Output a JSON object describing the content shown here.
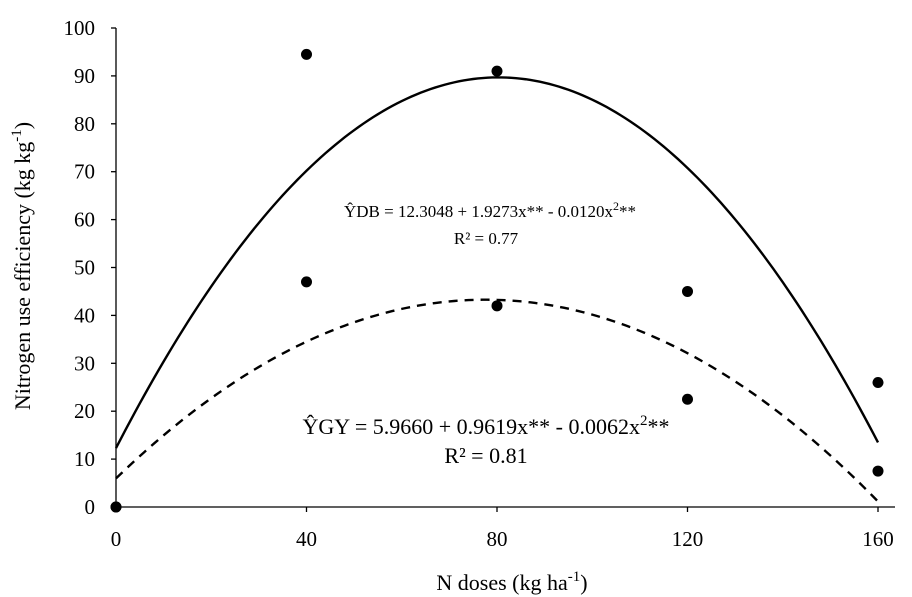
{
  "chart_data": {
    "type": "scatter",
    "xlabel": "N doses (kg ha",
    "xlabel_sup": "-1",
    "xlabel_end": ")",
    "ylabel": "Nitrogen  use  efficiency  (kg kg",
    "ylabel_sup": "-1",
    "ylabel_end": ")",
    "xlim": [
      0,
      160
    ],
    "ylim": [
      0,
      100
    ],
    "x_ticks": [
      "0",
      "40",
      "80",
      "120",
      "160"
    ],
    "y_ticks": [
      "0",
      "10",
      "20",
      "30",
      "40",
      "50",
      "60",
      "70",
      "80",
      "90",
      "100"
    ],
    "grid": false,
    "series": [
      {
        "marker": "circle",
        "x": [
          0,
          40,
          80,
          120,
          160
        ],
        "y": [
          0,
          94.5,
          91,
          45,
          26
        ],
        "fit": {
          "a": 12.3048,
          "b": 1.9273,
          "c": -0.012,
          "line": "solid"
        }
      },
      {
        "marker": "circle",
        "x": [
          0,
          40,
          80,
          120,
          160
        ],
        "y": [
          0,
          47,
          42,
          22.5,
          7.5
        ],
        "fit": {
          "a": 5.966,
          "b": 0.9619,
          "c": -0.0062,
          "line": "dashed"
        }
      }
    ],
    "annotations": {
      "ydb_equation": {
        "lhs": "ŶDB",
        "rhs": " = 12.3048  + 1.9273x**  - 0.0120x",
        "sup": "2",
        "tail": "**",
        "r2": "R² = 0.77"
      },
      "ygy_equation": {
        "lhs": "ŶGY",
        "rhs": " = 5.9660 + 0.9619x** - 0.0062x",
        "sup": "2",
        "tail": "**",
        "r2": "R² = 0.81"
      }
    }
  }
}
